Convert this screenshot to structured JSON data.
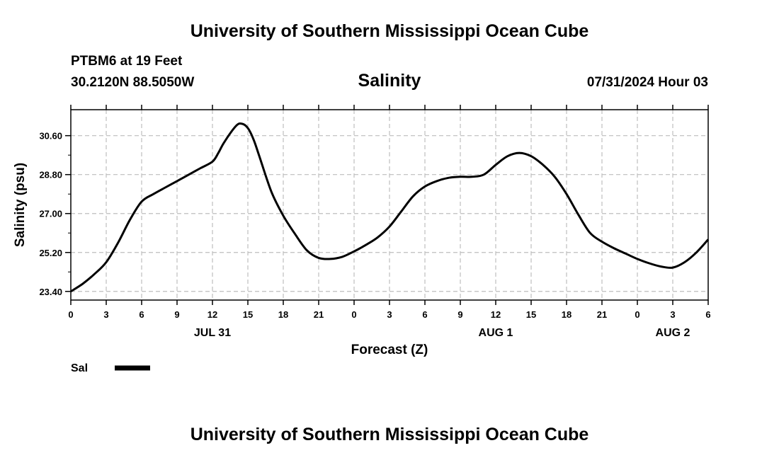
{
  "header": {
    "title": "University of Southern Mississippi Ocean Cube",
    "station": "PTBM6 at 19 Feet",
    "coords": "30.2120N  88.5050W",
    "variable": "Salinity",
    "datetime": "07/31/2024 Hour 03"
  },
  "footer": {
    "title": "University of Southern Mississippi Ocean Cube"
  },
  "chart_data": {
    "type": "line",
    "title": "Salinity",
    "xlabel": "Forecast (Z)",
    "ylabel": "Salinity (psu)",
    "xlim": [
      0,
      54
    ],
    "ylim": [
      23.0,
      31.8
    ],
    "grid": true,
    "x_tick_labels": [
      "0",
      "3",
      "6",
      "9",
      "12",
      "15",
      "18",
      "21",
      "0",
      "3",
      "6",
      "9",
      "12",
      "15",
      "18",
      "21",
      "0",
      "3",
      "6"
    ],
    "y_ticks": [
      23.4,
      25.2,
      27.0,
      28.8,
      30.6
    ],
    "y_tick_labels": [
      "23.40",
      "25.20",
      "27.00",
      "28.80",
      "30.60"
    ],
    "date_labels": [
      {
        "label": "JUL 31",
        "hour": 12
      },
      {
        "label": "AUG 1",
        "hour": 36
      },
      {
        "label": "AUG 2",
        "hour": 51
      }
    ],
    "legend": [
      {
        "name": "Sal",
        "color": "#000000"
      }
    ],
    "series": [
      {
        "name": "Sal",
        "color": "#000000",
        "x": [
          0,
          1,
          2,
          3,
          4,
          5,
          6,
          7,
          8,
          9,
          10,
          11,
          12,
          12.5,
          13,
          14,
          14.5,
          15,
          15.5,
          16,
          17,
          18,
          19,
          20,
          21,
          22,
          23,
          24,
          25,
          26,
          27,
          28,
          29,
          30,
          31,
          32,
          33,
          34,
          35,
          36,
          37,
          38,
          39,
          40,
          41,
          42,
          43,
          44,
          45,
          46,
          47,
          48,
          49,
          50,
          51,
          52,
          53,
          54
        ],
        "y": [
          23.4,
          23.75,
          24.2,
          24.75,
          25.65,
          26.7,
          27.55,
          27.9,
          28.2,
          28.5,
          28.8,
          29.1,
          29.4,
          29.8,
          30.3,
          31.05,
          31.15,
          30.95,
          30.4,
          29.6,
          28.0,
          26.9,
          26.05,
          25.3,
          24.95,
          24.9,
          25.0,
          25.25,
          25.55,
          25.9,
          26.4,
          27.1,
          27.8,
          28.25,
          28.5,
          28.65,
          28.7,
          28.7,
          28.8,
          29.25,
          29.65,
          29.8,
          29.65,
          29.25,
          28.7,
          27.9,
          26.95,
          26.1,
          25.7,
          25.4,
          25.15,
          24.9,
          24.7,
          24.55,
          24.5,
          24.75,
          25.2,
          25.8
        ]
      }
    ]
  }
}
